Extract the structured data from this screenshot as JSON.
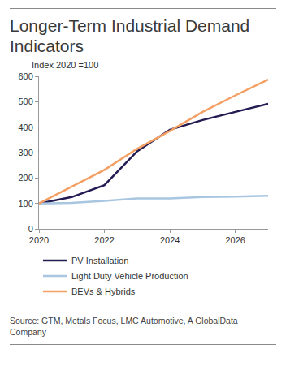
{
  "chart_data": {
    "type": "line",
    "title": "Longer-Term Industrial Demand Indicators",
    "ylabel": "Index 2020 =100",
    "source": "Source: GTM, Metals Focus, LMC Automotive, A GlobalData Company",
    "x": [
      2020,
      2021,
      2022,
      2023,
      2024,
      2025,
      2026,
      2027
    ],
    "series": [
      {
        "name": "PV Installation",
        "color": "#221c52",
        "values": [
          100,
          125,
          172,
          305,
          390,
          428,
          460,
          492
        ]
      },
      {
        "name": "Light Duty Vehicle Production",
        "color": "#a9c6e0",
        "values": [
          100,
          102,
          110,
          120,
          120,
          125,
          127,
          130
        ]
      },
      {
        "name": "BEVs & Hybrids",
        "color": "#f4a064",
        "values": [
          100,
          165,
          232,
          315,
          385,
          460,
          525,
          587
        ]
      }
    ],
    "xlim": [
      2020,
      2027
    ],
    "xticks": [
      2020,
      2022,
      2024,
      2026
    ],
    "ylim": [
      0,
      600
    ],
    "yticks": [
      0,
      100,
      200,
      300,
      400,
      500,
      600
    ],
    "grid": false,
    "legend": "bottom"
  }
}
